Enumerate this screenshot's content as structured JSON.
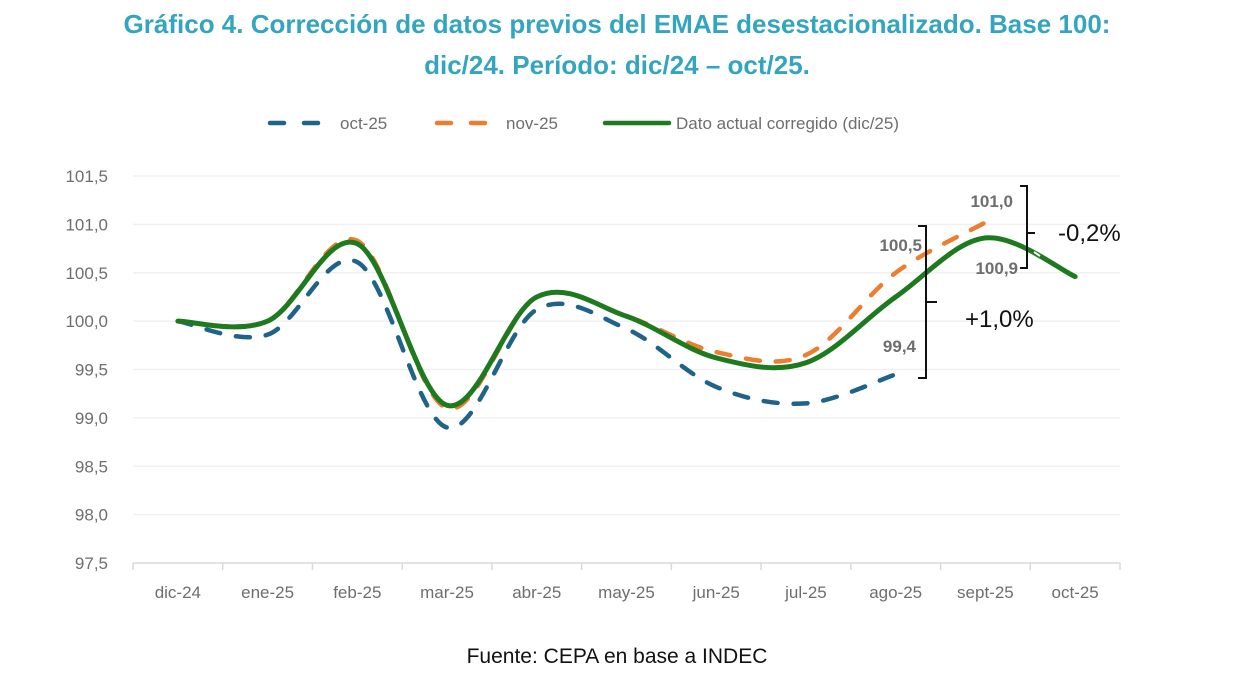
{
  "chart_data": {
    "type": "line",
    "title": "Gráfico 4. Corrección de datos previos del EMAE desestacionalizado. Base 100: dic/24. Período: dic/24 – oct/25.",
    "title_lines": [
      "Gráfico 4. Corrección de datos previos del EMAE desestacionalizado. Base 100:",
      "dic/24. Período: dic/24 – oct/25."
    ],
    "xlabel": "",
    "ylabel": "",
    "categories": [
      "dic-24",
      "ene-25",
      "feb-25",
      "mar-25",
      "abr-25",
      "may-25",
      "jun-25",
      "jul-25",
      "ago-25",
      "sept-25",
      "oct-25"
    ],
    "ylim": [
      97.5,
      101.5
    ],
    "yticks": [
      101.5,
      101.0,
      100.5,
      100.0,
      99.5,
      99.0,
      98.5,
      98.0,
      97.5
    ],
    "ytick_labels": [
      "101,5",
      "101,0",
      "100,5",
      "100,0",
      "99,5",
      "99,0",
      "98,5",
      "98,0",
      "97,5"
    ],
    "grid": true,
    "legend_position": "top",
    "series": [
      {
        "name": "oct-25",
        "color": "#1f6389",
        "style": "dashed",
        "values": [
          100.0,
          99.86,
          100.61,
          98.9,
          100.12,
          99.92,
          99.32,
          99.15,
          99.45,
          null,
          null
        ]
      },
      {
        "name": "nov-25",
        "color": "#ed7d31",
        "style": "dashed",
        "values": [
          100.0,
          100.0,
          100.83,
          99.1,
          100.25,
          100.05,
          99.68,
          99.65,
          100.5,
          101.02,
          null
        ]
      },
      {
        "name": "Dato actual corregido (dic/25)",
        "color": "#1e7a1e",
        "style": "solid",
        "values": [
          100.0,
          100.0,
          100.8,
          99.13,
          100.25,
          100.05,
          99.62,
          99.57,
          100.25,
          100.86,
          100.46
        ]
      }
    ],
    "data_labels": [
      {
        "text": "101,0",
        "category": "sept-25",
        "value": 101.0,
        "series": "nov-25"
      },
      {
        "text": "100,9",
        "category": "sept-25",
        "value": 100.9,
        "series": "Dato actual corregido (dic/25)"
      },
      {
        "text": "100,5",
        "category": "ago-25",
        "value": 100.5,
        "series": "nov-25"
      },
      {
        "text": "99,4",
        "category": "ago-25",
        "value": 99.4,
        "series": "oct-25"
      }
    ],
    "annotations": [
      {
        "text": "-0,2%",
        "between": [
          "101,0",
          "100,9"
        ],
        "category": "sept-25"
      },
      {
        "text": "+1,0%",
        "between": [
          "100,5",
          "99,4"
        ],
        "category": "ago-25"
      }
    ]
  },
  "source": "Fuente: CEPA en base a INDEC"
}
